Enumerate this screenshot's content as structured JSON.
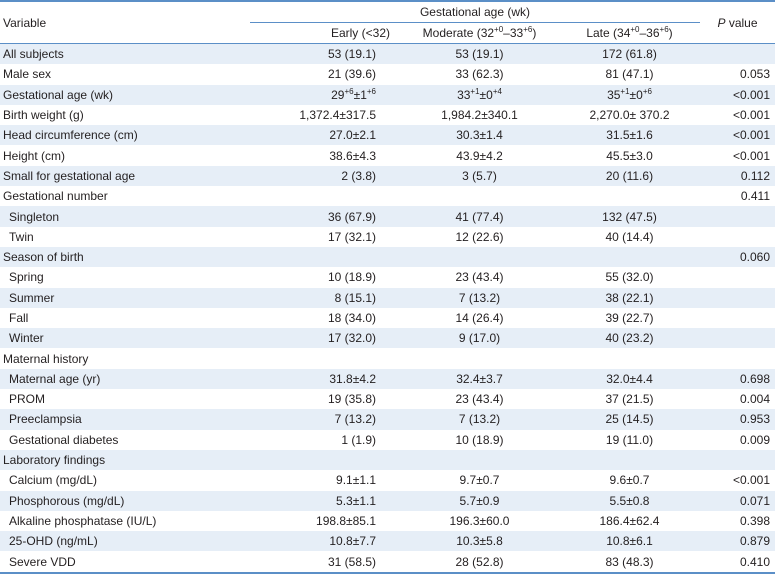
{
  "header": {
    "variable": "Variable",
    "group": "Gestational age (wk)",
    "early": "Early (<32)",
    "moderate": {
      "base": "Moderate (32",
      "s1": "+0",
      "mid": "–33",
      "s2": "+6",
      "end": ")"
    },
    "late": {
      "base": "Late (34",
      "s1": "+0",
      "mid": "–36",
      "s2": "+6",
      "end": ")"
    },
    "p_italic": "P",
    "p_rest": " value"
  },
  "rows": [
    {
      "label": "All subjects",
      "indent": false,
      "early": "53 (19.1)",
      "moderate": "53 (19.1)",
      "late": "172 (61.8)",
      "p": ""
    },
    {
      "label": "Male sex",
      "indent": false,
      "early": "21 (39.6)",
      "moderate": "33 (62.3)",
      "late": "81 (47.1)",
      "p": "0.053"
    },
    {
      "label": "Gestational age (wk)",
      "indent": false,
      "early_sup": {
        "base": "29",
        "s1": "+6",
        "mid": "±1",
        "s2": "+6"
      },
      "moderate_sup": {
        "base": "33",
        "s1": "+1",
        "mid": "±0",
        "s2": "+4"
      },
      "late_sup": {
        "base": "35",
        "s1": "+1",
        "mid": "±0",
        "s2": "+6"
      },
      "p": "<0.001"
    },
    {
      "label": "Birth weight (g)",
      "indent": false,
      "early": "1,372.4±317.5",
      "moderate": "1,984.2±340.1",
      "late": "2,270.0± 370.2",
      "p": "<0.001"
    },
    {
      "label": "Head circumference (cm)",
      "indent": false,
      "early": "27.0±2.1",
      "moderate": "30.3±1.4",
      "late": "31.5±1.6",
      "p": "<0.001"
    },
    {
      "label": "Height (cm)",
      "indent": false,
      "early": "38.6±4.3",
      "moderate": "43.9±4.2",
      "late": "45.5±3.0",
      "p": "<0.001"
    },
    {
      "label": "Small for gestational age",
      "indent": false,
      "early": "2 (3.8)",
      "moderate": "3 (5.7)",
      "late": "20 (11.6)",
      "p": "0.112"
    },
    {
      "label": "Gestational number",
      "indent": false,
      "early": "",
      "moderate": "",
      "late": "",
      "p": "0.411"
    },
    {
      "label": "Singleton",
      "indent": true,
      "early": "36 (67.9)",
      "moderate": "41 (77.4)",
      "late": "132 (47.5)",
      "p": ""
    },
    {
      "label": "Twin",
      "indent": true,
      "early": "17 (32.1)",
      "moderate": "12 (22.6)",
      "late": "40 (14.4)",
      "p": ""
    },
    {
      "label": "Season of birth",
      "indent": false,
      "early": "",
      "moderate": "",
      "late": "",
      "p": "0.060"
    },
    {
      "label": "Spring",
      "indent": true,
      "early": "10 (18.9)",
      "moderate": "23 (43.4)",
      "late": "55 (32.0)",
      "p": ""
    },
    {
      "label": "Summer",
      "indent": true,
      "early": "8 (15.1)",
      "moderate": "7 (13.2)",
      "late": "38 (22.1)",
      "p": ""
    },
    {
      "label": "Fall",
      "indent": true,
      "early": "18 (34.0)",
      "moderate": "14 (26.4)",
      "late": "39 (22.7)",
      "p": ""
    },
    {
      "label": "Winter",
      "indent": true,
      "early": "17 (32.0)",
      "moderate": "9 (17.0)",
      "late": "40 (23.2)",
      "p": ""
    },
    {
      "label": "Maternal history",
      "indent": false,
      "early": "",
      "moderate": "",
      "late": "",
      "p": ""
    },
    {
      "label": "Maternal age (yr)",
      "indent": true,
      "early": "31.8±4.2",
      "moderate": "32.4±3.7",
      "late": "32.0±4.4",
      "p": "0.698"
    },
    {
      "label": "PROM",
      "indent": true,
      "early": "19 (35.8)",
      "moderate": "23 (43.4)",
      "late": "37 (21.5)",
      "p": "0.004"
    },
    {
      "label": "Preeclampsia",
      "indent": true,
      "early": "7 (13.2)",
      "moderate": "7 (13.2)",
      "late": "25 (14.5)",
      "p": "0.953"
    },
    {
      "label": "Gestational diabetes",
      "indent": true,
      "early": "1 (1.9)",
      "moderate": "10 (18.9)",
      "late": "19 (11.0)",
      "p": "0.009"
    },
    {
      "label": "Laboratory findings",
      "indent": false,
      "early": "",
      "moderate": "",
      "late": "",
      "p": ""
    },
    {
      "label": "Calcium (mg/dL)",
      "indent": true,
      "early": "9.1±1.1",
      "moderate": "9.7±0.7",
      "late": "9.6±0.7",
      "p": "<0.001"
    },
    {
      "label": "Phosphorous (mg/dL)",
      "indent": true,
      "early": "5.3±1.1",
      "moderate": "5.7±0.9",
      "late": "5.5±0.8",
      "p": "0.071"
    },
    {
      "label": "Alkaline phosphatase (IU/L)",
      "indent": true,
      "early": "198.8±85.1",
      "moderate": "196.3±60.0",
      "late": "186.4±62.4",
      "p": "0.398"
    },
    {
      "label": "25-OHD (ng/mL)",
      "indent": true,
      "early": "10.8±7.7",
      "moderate": "10.3±5.8",
      "late": "10.8±6.1",
      "p": "0.879"
    },
    {
      "label": "Severe VDD",
      "indent": true,
      "early": "31 (58.5)",
      "moderate": "28 (52.8)",
      "late": "83 (48.3)",
      "p": "0.410"
    }
  ],
  "colors": {
    "rule": "#5b8fc7",
    "stripe": "#e6eef7",
    "text": "#231f20"
  }
}
